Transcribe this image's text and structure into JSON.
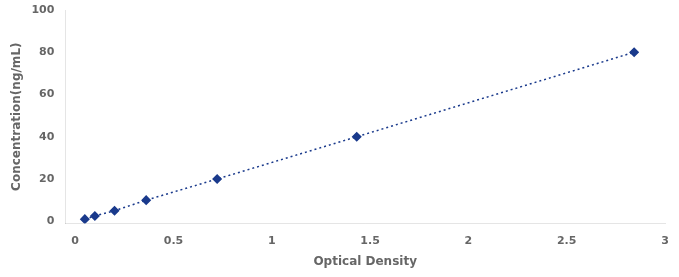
{
  "chart_data": {
    "type": "line",
    "x": [
      0.049,
      0.1,
      0.2,
      0.361,
      0.722,
      1.432,
      2.843
    ],
    "values": [
      1.0,
      2.5,
      5.0,
      10.0,
      20.0,
      40.0,
      80.0
    ],
    "color": "#1a3a8c",
    "marker": "diamond",
    "line_style": "dotted",
    "xlabel": "Optical Density",
    "ylabel": "Concentration(ng/mL)",
    "xlim": [
      -0.05,
      3.0
    ],
    "ylim": [
      -1,
      100
    ],
    "xticks": [
      0,
      0.5,
      1,
      1.5,
      2,
      2.5,
      3
    ],
    "yticks": [
      0,
      20,
      40,
      60,
      80,
      100
    ],
    "grid": false
  }
}
